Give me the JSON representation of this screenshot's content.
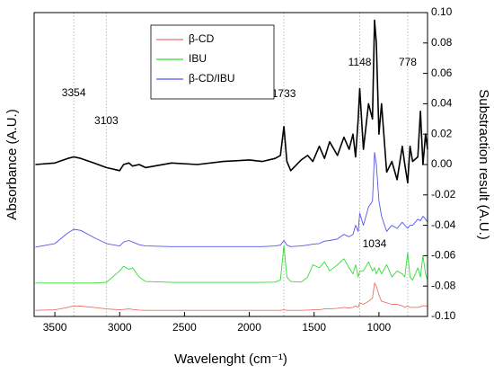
{
  "chart_data": {
    "type": "line",
    "xlabel": "Wavelenght (cm⁻¹)",
    "ylabel": "Absorbance (A.U.)",
    "y2label": "Substraction result (A.U.)",
    "xlim": [
      3660,
      625
    ],
    "xticks": [
      3500,
      3000,
      2500,
      2000,
      1500,
      1000
    ],
    "ylim": [
      0,
      1
    ],
    "y2lim": [
      -0.1,
      0.1
    ],
    "y2ticks": [
      {
        "value": 0.1,
        "label": "0.10"
      },
      0.08,
      0.06,
      0.04,
      0.02,
      {
        "value": 0,
        "label": "0.00"
      },
      -0.02,
      -0.04,
      -0.06,
      -0.08,
      {
        "value": -0.1,
        "label": "-0.10"
      }
    ],
    "legend": "upper center",
    "x": [
      3650,
      3500,
      3400,
      3354,
      3300,
      3200,
      3103,
      3000,
      2970,
      2930,
      2900,
      2850,
      2800,
      2600,
      2400,
      2200,
      2000,
      1900,
      1800,
      1760,
      1733,
      1710,
      1680,
      1600,
      1550,
      1510,
      1460,
      1420,
      1380,
      1320,
      1270,
      1230,
      1200,
      1180,
      1160,
      1148,
      1120,
      1080,
      1050,
      1034,
      1020,
      1000,
      980,
      940,
      900,
      860,
      820,
      800,
      778,
      760,
      740,
      700,
      680,
      660,
      640,
      625
    ],
    "series": [
      {
        "name": "β-CD",
        "color": "#e8736a",
        "values": [
          0.02,
          0.022,
          0.03,
          0.035,
          0.034,
          0.03,
          0.025,
          0.022,
          0.023,
          0.025,
          0.023,
          0.021,
          0.02,
          0.02,
          0.02,
          0.02,
          0.02,
          0.02,
          0.02,
          0.02,
          0.022,
          0.02,
          0.02,
          0.02,
          0.021,
          0.022,
          0.022,
          0.025,
          0.025,
          0.027,
          0.03,
          0.028,
          0.03,
          0.035,
          0.03,
          0.045,
          0.04,
          0.05,
          0.06,
          0.11,
          0.1,
          0.07,
          0.05,
          0.045,
          0.04,
          0.04,
          0.035,
          0.03,
          0.035,
          0.03,
          0.03,
          0.03,
          0.032,
          0.035,
          0.035,
          0.033
        ]
      },
      {
        "name": "IBU",
        "color": "#33dd33",
        "values": [
          0.11,
          0.11,
          0.11,
          0.11,
          0.11,
          0.11,
          0.112,
          0.15,
          0.165,
          0.155,
          0.16,
          0.13,
          0.115,
          0.112,
          0.112,
          0.112,
          0.112,
          0.112,
          0.113,
          0.12,
          0.234,
          0.13,
          0.115,
          0.113,
          0.13,
          0.17,
          0.16,
          0.18,
          0.15,
          0.17,
          0.19,
          0.16,
          0.14,
          0.17,
          0.13,
          0.15,
          0.15,
          0.18,
          0.15,
          0.16,
          0.14,
          0.16,
          0.14,
          0.17,
          0.13,
          0.15,
          0.14,
          0.13,
          0.21,
          0.13,
          0.12,
          0.16,
          0.13,
          0.2,
          0.14,
          0.12
        ]
      },
      {
        "name": "β-CD/IBU",
        "color": "#5555ee",
        "values": [
          0.228,
          0.24,
          0.275,
          0.287,
          0.283,
          0.26,
          0.24,
          0.232,
          0.245,
          0.25,
          0.245,
          0.236,
          0.232,
          0.23,
          0.23,
          0.23,
          0.23,
          0.23,
          0.232,
          0.235,
          0.25,
          0.235,
          0.23,
          0.232,
          0.235,
          0.238,
          0.24,
          0.248,
          0.25,
          0.255,
          0.27,
          0.262,
          0.27,
          0.3,
          0.28,
          0.34,
          0.3,
          0.36,
          0.38,
          0.54,
          0.5,
          0.38,
          0.33,
          0.28,
          0.3,
          0.29,
          0.31,
          0.3,
          0.29,
          0.3,
          0.3,
          0.32,
          0.315,
          0.33,
          0.32,
          0.31
        ]
      },
      {
        "color": "#000000",
        "axis": "y2",
        "values": [
          0,
          0.001,
          0.004,
          0.005,
          0.004,
          0.001,
          -0.002,
          -0.004,
          0.0,
          0.001,
          -0.001,
          0.0,
          -0.002,
          0.001,
          0.0,
          0.002,
          0.003,
          0.002,
          0.004,
          0.006,
          0.025,
          0.002,
          -0.004,
          0.003,
          0.006,
          0.002,
          0.012,
          0.004,
          0.015,
          0.006,
          0.018,
          0.01,
          0.02,
          0.005,
          0.03,
          0.05,
          0.01,
          0.04,
          0.03,
          0.095,
          0.08,
          0.02,
          0.04,
          -0.005,
          0.002,
          -0.01,
          0.012,
          0.0,
          -0.012,
          0.012,
          0.002,
          0.005,
          0.035,
          0.0,
          0.02,
          0.01
        ]
      }
    ],
    "annotations": [
      {
        "text": "3354",
        "x": 3354,
        "line": true
      },
      {
        "text": "3103",
        "x": 3103,
        "line": true
      },
      {
        "text": "1733",
        "x": 1733,
        "line": true
      },
      {
        "text": "1148",
        "x": 1148,
        "line": true
      },
      {
        "text": "778",
        "x": 778,
        "line": true
      },
      {
        "text": "1034",
        "x": 1034,
        "line": false
      }
    ]
  }
}
